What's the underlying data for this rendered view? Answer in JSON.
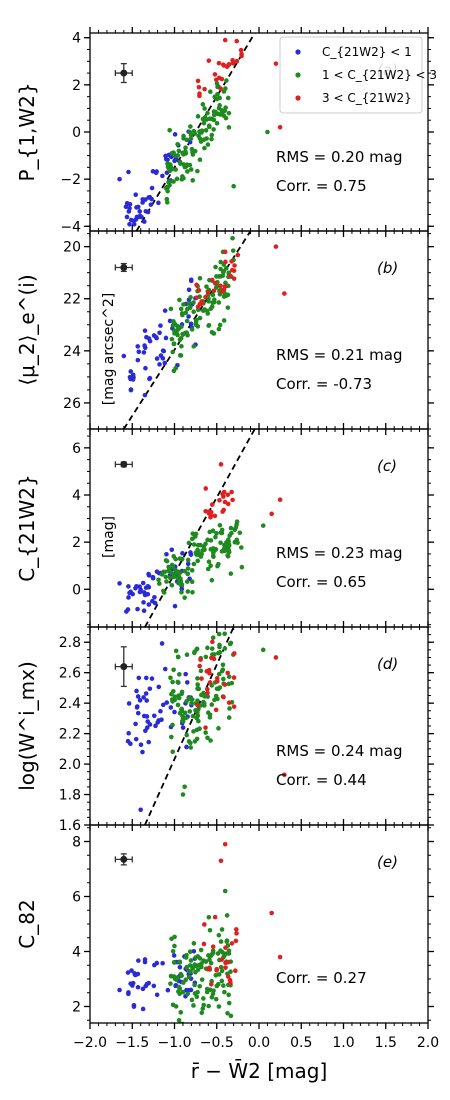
{
  "chart_data": [
    {
      "type": "scatter",
      "panel_label": "(a)",
      "ylabel": "P_{1,W2}",
      "ylim": [
        -4.2,
        4.2
      ],
      "yticks": [
        -4,
        -2,
        0,
        2,
        4
      ],
      "ytick_labels": [
        "−4",
        "−2",
        "0",
        "2",
        "4"
      ],
      "rms_text": "RMS = 0.20 mag",
      "corr_text": "Corr. = 0.75",
      "unit_text": "",
      "fit_line": {
        "x": [
          -1.45,
          -0.05
        ],
        "y": [
          -4.2,
          4.2
        ]
      },
      "error_bar": {
        "x": -1.6,
        "y": 2.5,
        "xerr": 0.1,
        "yerr": 0.4
      },
      "seed": 11,
      "groups": [
        {
          "series": "blue",
          "n": 52,
          "x_range": [
            -1.6,
            -0.8
          ],
          "slope": 4.5,
          "intercept": 3.3,
          "scatter": 0.55
        },
        {
          "series": "green",
          "n": 120,
          "x_range": [
            -1.1,
            -0.35
          ],
          "slope": 4.5,
          "intercept": 3.0,
          "scatter": 0.6
        },
        {
          "series": "red",
          "n": 24,
          "x_range": [
            -0.75,
            -0.2
          ],
          "slope": 3.0,
          "intercept": 3.9,
          "scatter": 0.5
        }
      ],
      "extra_points": [
        {
          "series": "red",
          "x": 0.25,
          "y": 0.2
        },
        {
          "series": "red",
          "x": 0.2,
          "y": 2.9
        },
        {
          "series": "green",
          "x": -0.3,
          "y": -2.3
        },
        {
          "series": "green",
          "x": 0.1,
          "y": 0.0
        },
        {
          "series": "red",
          "x": -0.4,
          "y": 3.9
        },
        {
          "series": "blue",
          "x": -1.65,
          "y": -2.0
        },
        {
          "series": "blue",
          "x": -1.45,
          "y": -3.2
        }
      ]
    },
    {
      "type": "scatter",
      "panel_label": "(b)",
      "ylabel": "⟨μ_2⟩_e^(i)",
      "ylim": [
        27.0,
        19.4
      ],
      "yticks": [
        20,
        22,
        24,
        26
      ],
      "ytick_labels": [
        "20",
        "22",
        "24",
        "26"
      ],
      "rms_text": "RMS = 0.21 mag",
      "corr_text": "Corr. = -0.73",
      "unit_text": "[mag arcsec^2]",
      "fit_line": {
        "x": [
          -1.6,
          -0.1
        ],
        "y": [
          27.0,
          19.4
        ]
      },
      "error_bar": {
        "x": -1.6,
        "y": 20.8,
        "xerr": 0.1,
        "yerr": 0.15
      },
      "seed": 23,
      "groups": [
        {
          "series": "blue",
          "n": 52,
          "x_range": [
            -1.55,
            -0.75
          ],
          "slope": -3.6,
          "intercept": 19.7,
          "scatter": 0.6
        },
        {
          "series": "green",
          "n": 120,
          "x_range": [
            -1.05,
            -0.3
          ],
          "slope": -3.6,
          "intercept": 19.9,
          "scatter": 0.6
        },
        {
          "series": "red",
          "n": 24,
          "x_range": [
            -0.75,
            -0.25
          ],
          "slope": -2.5,
          "intercept": 20.3,
          "scatter": 0.4
        }
      ],
      "extra_points": [
        {
          "series": "red",
          "x": 0.2,
          "y": 20.0
        },
        {
          "series": "red",
          "x": 0.3,
          "y": 21.8
        },
        {
          "series": "red",
          "x": -0.4,
          "y": 20.2
        },
        {
          "series": "blue",
          "x": -1.6,
          "y": 24.2
        },
        {
          "series": "blue",
          "x": -1.35,
          "y": 25.7
        }
      ]
    },
    {
      "type": "scatter",
      "panel_label": "(c)",
      "ylabel": "C_{21W2}",
      "ylim": [
        -1.6,
        6.8
      ],
      "yticks": [
        0,
        2,
        4,
        6
      ],
      "ytick_labels": [
        "0",
        "2",
        "4",
        "6"
      ],
      "rms_text": "RMS = 0.23 mag",
      "corr_text": "Corr. = 0.65",
      "unit_text": "[mag]",
      "fit_line": {
        "x": [
          -1.35,
          -0.05
        ],
        "y": [
          -1.6,
          6.8
        ]
      },
      "error_bar": {
        "x": -1.6,
        "y": 5.3,
        "xerr": 0.1,
        "yerr": 0.1
      },
      "seed": 37,
      "groups": [
        {
          "series": "blue",
          "n": 52,
          "x_range": [
            -1.6,
            -0.8
          ],
          "slope": 1.8,
          "intercept": 2.2,
          "scatter": 0.55
        },
        {
          "series": "green",
          "n": 125,
          "x_range": [
            -1.2,
            -0.2
          ],
          "slope": 1.8,
          "intercept": 2.6,
          "scatter": 0.55
        },
        {
          "series": "red",
          "n": 20,
          "x_range": [
            -0.65,
            -0.3
          ],
          "slope": 1.0,
          "intercept": 4.0,
          "scatter": 0.3
        }
      ],
      "extra_points": [
        {
          "series": "red",
          "x": 0.25,
          "y": 3.8
        },
        {
          "series": "red",
          "x": 0.15,
          "y": 3.2
        },
        {
          "series": "red",
          "x": -0.45,
          "y": 5.3
        },
        {
          "series": "blue",
          "x": -1.65,
          "y": 0.25
        },
        {
          "series": "green",
          "x": 0.05,
          "y": 2.7
        }
      ]
    },
    {
      "type": "scatter",
      "panel_label": "(d)",
      "ylabel": "log(W^i_mx)",
      "ylim": [
        1.6,
        2.9
      ],
      "yticks": [
        1.6,
        1.8,
        2.0,
        2.2,
        2.4,
        2.6,
        2.8
      ],
      "ytick_labels": [
        "1.6",
        "1.8",
        "2.0",
        "2.2",
        "2.4",
        "2.6",
        "2.8"
      ],
      "rms_text": "RMS = 0.24 mag",
      "corr_text": "Corr. = 0.44",
      "unit_text": "",
      "fit_line": {
        "x": [
          -1.35,
          -0.3
        ],
        "y": [
          1.6,
          2.9
        ]
      },
      "error_bar": {
        "x": -1.6,
        "y": 2.64,
        "xerr": 0.1,
        "yerr": 0.13
      },
      "seed": 51,
      "groups": [
        {
          "series": "blue",
          "n": 52,
          "x_range": [
            -1.55,
            -0.8
          ],
          "slope": 0.28,
          "intercept": 2.7,
          "scatter": 0.14
        },
        {
          "series": "green",
          "n": 125,
          "x_range": [
            -1.05,
            -0.3
          ],
          "slope": 0.35,
          "intercept": 2.7,
          "scatter": 0.17
        },
        {
          "series": "red",
          "n": 24,
          "x_range": [
            -0.75,
            -0.2
          ],
          "slope": 0.25,
          "intercept": 2.7,
          "scatter": 0.13
        }
      ],
      "extra_points": [
        {
          "series": "red",
          "x": 0.2,
          "y": 2.7
        },
        {
          "series": "green",
          "x": 0.05,
          "y": 2.75
        },
        {
          "series": "blue",
          "x": -1.55,
          "y": 2.15
        },
        {
          "series": "blue",
          "x": -1.4,
          "y": 1.7
        },
        {
          "series": "green",
          "x": -0.9,
          "y": 1.8
        },
        {
          "series": "red",
          "x": 0.3,
          "y": 1.93
        }
      ]
    },
    {
      "type": "scatter",
      "panel_label": "(e)",
      "ylabel": "C_82",
      "ylim": [
        1.4,
        8.6
      ],
      "yticks": [
        2,
        4,
        6,
        8
      ],
      "ytick_labels": [
        "2",
        "4",
        "6",
        "8"
      ],
      "rms_text": "",
      "corr_text": "Corr. = 0.27",
      "unit_text": "",
      "fit_line": null,
      "error_bar": {
        "x": -1.6,
        "y": 7.35,
        "xerr": 0.1,
        "yerr": 0.2
      },
      "seed": 67,
      "groups": [
        {
          "series": "blue",
          "n": 52,
          "x_range": [
            -1.55,
            -0.75
          ],
          "slope": 0.4,
          "intercept": 3.5,
          "scatter": 0.45
        },
        {
          "series": "green",
          "n": 125,
          "x_range": [
            -1.05,
            -0.3
          ],
          "slope": 0.6,
          "intercept": 3.6,
          "scatter": 0.75
        },
        {
          "series": "red",
          "n": 22,
          "x_range": [
            -0.7,
            -0.25
          ],
          "slope": 0.8,
          "intercept": 3.9,
          "scatter": 0.7
        }
      ],
      "extra_points": [
        {
          "series": "red",
          "x": 0.15,
          "y": 5.4
        },
        {
          "series": "red",
          "x": 0.25,
          "y": 3.8
        },
        {
          "series": "red",
          "x": -0.45,
          "y": 7.3
        },
        {
          "series": "red",
          "x": -0.4,
          "y": 7.9
        },
        {
          "series": "green",
          "x": -0.4,
          "y": 6.2
        },
        {
          "series": "blue",
          "x": -1.65,
          "y": 2.6
        }
      ]
    }
  ],
  "series_colors": {
    "blue": "#2a2ad8",
    "green": "#1f8a1f",
    "red": "#e02020"
  },
  "legend": [
    {
      "series": "blue",
      "label": "C_{21W2} < 1"
    },
    {
      "series": "green",
      "label": "1 < C_{21W2} < 3"
    },
    {
      "series": "red",
      "label": "3 < C_{21W2}"
    }
  ],
  "legend_placement": "top-right",
  "xaxis": {
    "xlim": [
      -2.0,
      2.0
    ],
    "ticks": [
      -2.0,
      -1.5,
      -1.0,
      -0.5,
      0.0,
      0.5,
      1.0,
      1.5,
      2.0
    ],
    "tick_labels": [
      "−2.0",
      "−1.5",
      "−1.0",
      "−0.5",
      "0.0",
      "0.5",
      "1.0",
      "1.5",
      "2.0"
    ],
    "label": "r̄ − W̄2 [mag]"
  }
}
